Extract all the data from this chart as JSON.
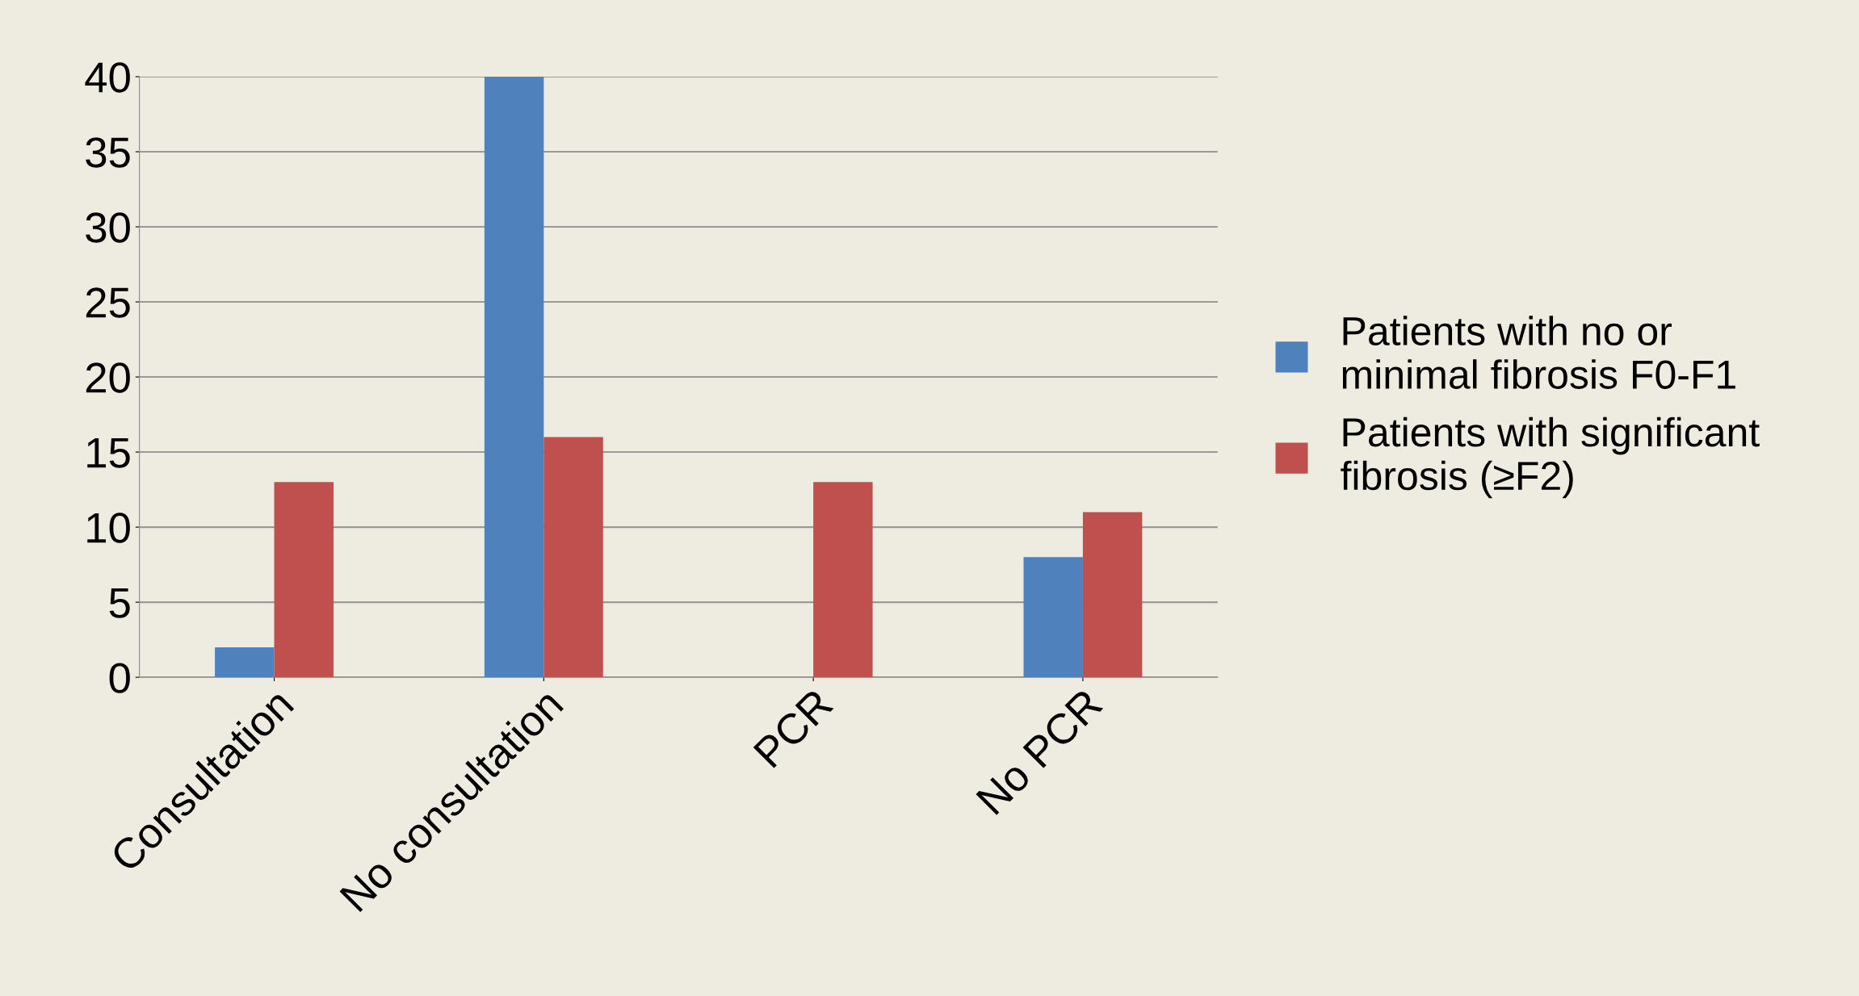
{
  "chart_data": {
    "type": "bar",
    "categories": [
      "Consultation",
      "No consultation",
      "PCR",
      "No PCR"
    ],
    "series": [
      {
        "name": "Patients with no or\nminimal fibrosis F0-F1",
        "color": "#4f81bd",
        "values": [
          2,
          40,
          0,
          8
        ]
      },
      {
        "name": "Patients with significant\nfibrosis (≥F2)",
        "color": "#c0504d",
        "values": [
          13,
          16,
          13,
          11
        ]
      }
    ],
    "ylim": [
      0,
      40
    ],
    "yticks": [
      0,
      5,
      10,
      15,
      20,
      25,
      30,
      35,
      40
    ],
    "grid": "y",
    "legend": "right"
  }
}
